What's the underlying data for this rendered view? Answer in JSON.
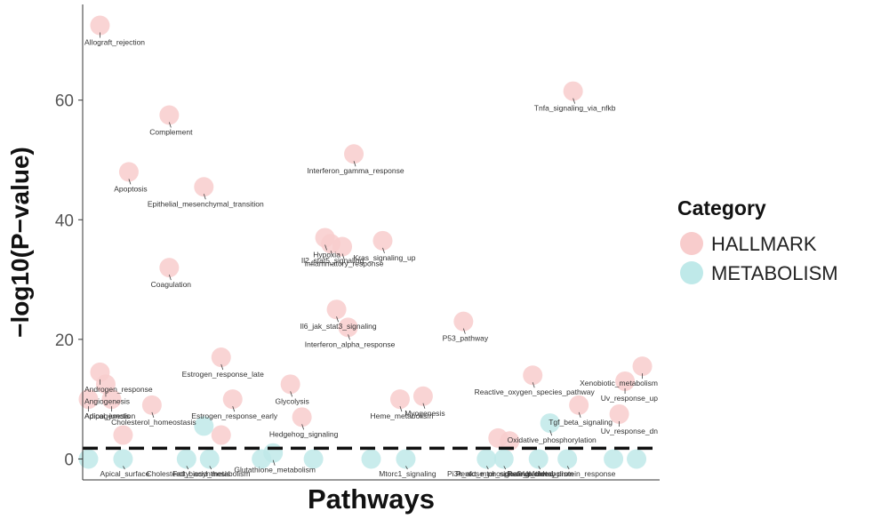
{
  "chart_data": {
    "type": "scatter",
    "xlabel": "Pathways",
    "ylabel": "−log10(P−value)",
    "ylim": [
      -3.5,
      76
    ],
    "yticks": [
      0,
      20,
      40,
      60
    ],
    "threshold": 1.8,
    "grid": false,
    "legend": {
      "title": "Category",
      "placement": "right",
      "entries": [
        {
          "name": "HALLMARK",
          "color": "#f8cccc"
        },
        {
          "name": "METABOLISM",
          "color": "#bfe9e9"
        }
      ]
    },
    "series": [
      {
        "name": "HALLMARK",
        "color": "#f8cccc",
        "points": [
          {
            "x": 3,
            "y": 72.5,
            "label": "Allograft_rejection"
          },
          {
            "x": 15,
            "y": 57.5,
            "label": "Complement"
          },
          {
            "x": 85,
            "y": 61.5,
            "label": "Tnfa_signaling_via_nfkb"
          },
          {
            "x": 8,
            "y": 48,
            "label": "Apoptosis"
          },
          {
            "x": 21,
            "y": 45.5,
            "label": "Epithelial_mesenchymal_transition"
          },
          {
            "x": 47,
            "y": 51,
            "label": "Interferon_gamma_response"
          },
          {
            "x": 42,
            "y": 37,
            "label": "Hypoxia"
          },
          {
            "x": 43,
            "y": 36,
            "label": "Il2_stat5_signaling"
          },
          {
            "x": 45,
            "y": 35.5,
            "label": "Inflammatory_response"
          },
          {
            "x": 52,
            "y": 36.5,
            "label": "Kras_signaling_up"
          },
          {
            "x": 15,
            "y": 32,
            "label": "Coagulation"
          },
          {
            "x": 44,
            "y": 25,
            "label": "Il6_jak_stat3_signaling"
          },
          {
            "x": 46,
            "y": 22,
            "label": "Interferon_alpha_response"
          },
          {
            "x": 66,
            "y": 23,
            "label": "P53_pathway"
          },
          {
            "x": 24,
            "y": 17,
            "label": "Estrogen_response_late"
          },
          {
            "x": 97,
            "y": 15.5,
            "label": "Xenobiotic_metabolism"
          },
          {
            "x": 3,
            "y": 14.5,
            "label": "Androgen_response"
          },
          {
            "x": 4,
            "y": 12.5,
            "label": "Angiogenesis"
          },
          {
            "x": 78,
            "y": 14,
            "label": "Reactive_oxygen_species_pathway"
          },
          {
            "x": 94,
            "y": 13,
            "label": "Uv_response_up"
          },
          {
            "x": 36,
            "y": 12.5,
            "label": "Glycolysis"
          },
          {
            "x": 1,
            "y": 10,
            "label": "Adipogenesis"
          },
          {
            "x": 5,
            "y": 10,
            "label": "Apical_junction"
          },
          {
            "x": 12,
            "y": 9,
            "label": "Cholesterol_homeostasis"
          },
          {
            "x": 26,
            "y": 10,
            "label": "Estrogen_response_early"
          },
          {
            "x": 55,
            "y": 10,
            "label": "Heme_metabolism"
          },
          {
            "x": 59,
            "y": 10.5,
            "label": "Myogenesis"
          },
          {
            "x": 86,
            "y": 9,
            "label": "Tgf_beta_signaling"
          },
          {
            "x": 93,
            "y": 7.5,
            "label": "Uv_response_dn"
          },
          {
            "x": 38,
            "y": 7,
            "label": "Hedgehog_signaling"
          },
          {
            "x": 24,
            "y": 4,
            "label": ""
          },
          {
            "x": 7,
            "y": 4,
            "label": ""
          },
          {
            "x": 72,
            "y": 3.5,
            "label": ""
          },
          {
            "x": 74,
            "y": 3,
            "label": ""
          }
        ]
      },
      {
        "name": "METABOLISM",
        "color": "#bfe9e9",
        "points": [
          {
            "x": 1,
            "y": 0,
            "label": ""
          },
          {
            "x": 7,
            "y": 0,
            "label": "Apical_surface"
          },
          {
            "x": 21,
            "y": 5.5,
            "label": ""
          },
          {
            "x": 18,
            "y": 0,
            "label": "Cholesterol_biosynthesis"
          },
          {
            "x": 22,
            "y": 0,
            "label": "Fatty_acid_metabolism"
          },
          {
            "x": 33,
            "y": 1,
            "label": "Glutathione_metabolism"
          },
          {
            "x": 31,
            "y": 0,
            "label": ""
          },
          {
            "x": 40,
            "y": 0,
            "label": ""
          },
          {
            "x": 50,
            "y": 0,
            "label": ""
          },
          {
            "x": 56,
            "y": 0,
            "label": "Mtorc1_signaling"
          },
          {
            "x": 70,
            "y": 0,
            "label": "Pi3k_akt_mtor_signaling"
          },
          {
            "x": 73,
            "y": 0,
            "label": "Pentose_phosphate_pathway"
          },
          {
            "x": 81,
            "y": 6,
            "label": "Oxidative_phosphorylation"
          },
          {
            "x": 84,
            "y": 0,
            "label": "Unfolded_protein_response"
          },
          {
            "x": 79,
            "y": 0,
            "label": "Retinol_metabolism"
          },
          {
            "x": 92,
            "y": 0,
            "label": ""
          },
          {
            "x": 96,
            "y": 0,
            "label": ""
          }
        ]
      }
    ]
  }
}
